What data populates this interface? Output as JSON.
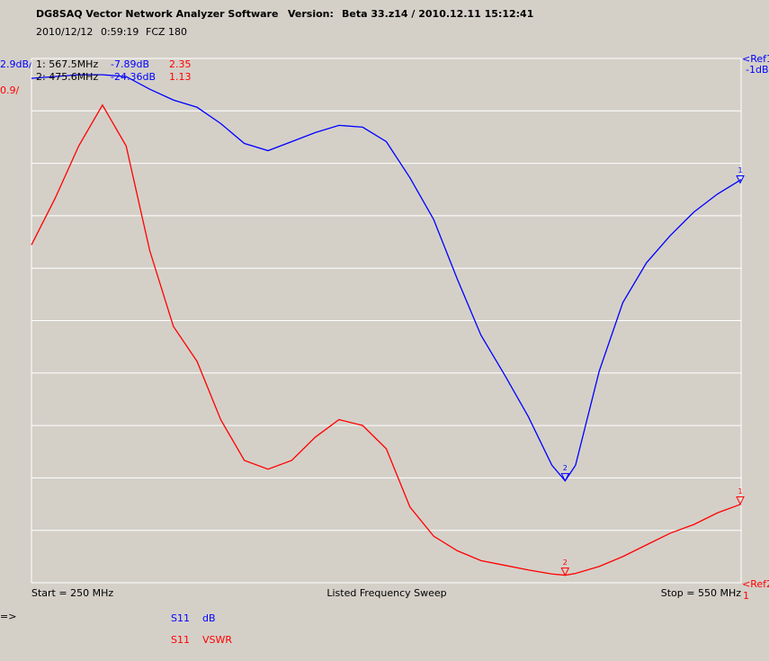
{
  "chart_data": {
    "type": "line",
    "title": "DG8SAQ Vector Network Analyzer Software",
    "version_label": "Version:",
    "version": "Beta 33.z14 / 2010.12.11 15:12:41",
    "date": "2010/12/12",
    "time": "0:59:19",
    "device": "FCZ 180",
    "y_scale_label": "2.9dB/",
    "y2_scale_label": "0.9/",
    "ref1_label": "<Ref1",
    "ref1_value": "-1dB",
    "ref2_label": "<Ref2",
    "ref2_value": "1",
    "start_label": "Start = 250 MHz",
    "sweep_label": "Listed Frequency Sweep",
    "stop_label": "Stop = 550 MHz",
    "prompt": "=>",
    "xlim": [
      250,
      550
    ],
    "ylim": [
      -30,
      -1
    ],
    "yticks": [
      -30,
      -27.1,
      -24.2,
      -21.3,
      -18.4,
      -15.5,
      -12.6,
      -9.7,
      -6.8,
      -3.9,
      -1
    ],
    "y2lim": [
      1,
      10
    ],
    "grid": true,
    "x": [
      250,
      260,
      270,
      280,
      290,
      300,
      310,
      320,
      330,
      340,
      350,
      360,
      370,
      380,
      390,
      400,
      410,
      420,
      430,
      440,
      450,
      460,
      470,
      475.6,
      480,
      490,
      500,
      510,
      520,
      530,
      540,
      550
    ],
    "series": [
      {
        "name": "S11",
        "unit": "dB",
        "color": "#0000ff",
        "values": [
          -2.1,
          -2.0,
          -1.9,
          -1.9,
          -2.0,
          -2.7,
          -3.3,
          -3.7,
          -4.6,
          -5.7,
          -6.1,
          -5.6,
          -5.1,
          -4.7,
          -4.8,
          -5.6,
          -7.6,
          -9.9,
          -13.2,
          -16.3,
          -18.5,
          -20.8,
          -23.5,
          -24.36,
          -23.5,
          -18.3,
          -14.5,
          -12.3,
          -10.8,
          -9.5,
          -8.5,
          -7.7
        ]
      },
      {
        "name": "S11",
        "unit": "VSWR",
        "color": "#ff0000",
        "axis": "y2",
        "values": [
          6.8,
          7.6,
          8.5,
          9.2,
          8.5,
          6.7,
          5.4,
          4.8,
          3.8,
          3.1,
          2.95,
          3.1,
          3.5,
          3.8,
          3.7,
          3.3,
          2.3,
          1.8,
          1.55,
          1.38,
          1.3,
          1.22,
          1.15,
          1.13,
          1.16,
          1.28,
          1.45,
          1.65,
          1.85,
          2.0,
          2.2,
          2.35
        ]
      }
    ],
    "markers": [
      {
        "id": "1",
        "freq": {
          "value": 567.5,
          "label": "1: 567.5MHz"
        },
        "db": {
          "value": -7.89,
          "label": "-7.89dB"
        },
        "vswr": 2.35
      },
      {
        "id": "2",
        "freq": {
          "value": 475.6,
          "label": "2: 475.6MHz"
        },
        "db": {
          "value": -24.36,
          "label": "-24.36dB"
        },
        "vswr": 1.13
      }
    ]
  }
}
